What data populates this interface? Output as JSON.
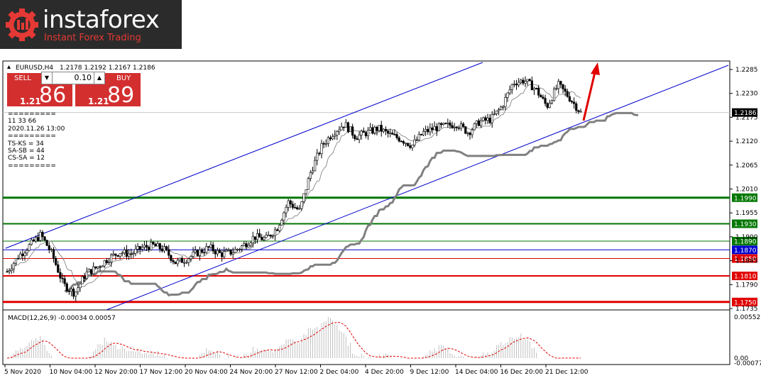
{
  "logo": {
    "brand": "instaforex",
    "tagline": "Instant Forex Trading"
  },
  "header": {
    "symbol": "EURUSD,H4",
    "ohlc": "1.2178 1.2192 1.2167 1.2186"
  },
  "trade_panel": {
    "sell_label": "SELL",
    "buy_label": "BUY",
    "lot": "0.10",
    "sell_small": "1.21",
    "sell_big": "86",
    "buy_small": "1.21",
    "buy_big": "89"
  },
  "info_lines": [
    "=========",
    "11 33 66",
    "2020.11.26 13:00",
    "=========",
    "TS-KS = 34",
    "SA-SB = 44",
    "CS-SA = 12",
    "========="
  ],
  "macd_label": "MACD(12,26,9) -0.00034 0.00057",
  "colors": {
    "up": "#000000",
    "down": "#000000",
    "channel": "#0000cc",
    "support": "#007700",
    "resistance": "#e00000",
    "kijun": "#808080",
    "arrow": "#e00000"
  },
  "chart_data": {
    "type": "candlestick",
    "price_axis_ticks": [
      "1.2285",
      "1.2230",
      "1.2175",
      "1.2120",
      "1.2065",
      "1.2010",
      "1.1955",
      "1.1900",
      "1.1845",
      "1.1790",
      "1.1735"
    ],
    "ylim": [
      1.1725,
      1.23
    ],
    "current_price": "1.2186",
    "levels": [
      {
        "label": "1.1990",
        "value": 1.199,
        "color": "#007700",
        "width": 3
      },
      {
        "label": "1.1930",
        "value": 1.193,
        "color": "#007700",
        "width": 2
      },
      {
        "label": "1.1890",
        "value": 1.189,
        "color": "#007700",
        "width": 1
      },
      {
        "label": "1.1870",
        "value": 1.187,
        "color": "#0000cc",
        "width": 1
      },
      {
        "label": "1.1850",
        "value": 1.185,
        "color": "#e00000",
        "width": 1
      },
      {
        "label": "1.1810",
        "value": 1.181,
        "color": "#e00000",
        "width": 2
      },
      {
        "label": "1.1750",
        "value": 1.175,
        "color": "#e00000",
        "width": 3
      }
    ],
    "x_ticks": [
      "5 Nov 2020",
      "10 Nov 04:00",
      "12 Nov 20:00",
      "17 Nov 12:00",
      "20 Nov 04:00",
      "24 Nov 20:00",
      "27 Nov 12:00",
      "2 Dec 04:00",
      "4 Dec 20:00",
      "9 Dec 12:00",
      "14 Dec 04:00",
      "16 Dec 20:00",
      "21 Dec 12:00"
    ],
    "macd_ticks": [
      "0.00552",
      "0.00",
      "-0.00077"
    ],
    "price_path": [
      1.182,
      1.1855,
      1.188,
      1.1905,
      1.186,
      1.179,
      1.177,
      1.1815,
      1.183,
      1.185,
      1.1865,
      1.186,
      1.1875,
      1.188,
      1.187,
      1.184,
      1.185,
      1.1865,
      1.1875,
      1.186,
      1.1865,
      1.188,
      1.19,
      1.1895,
      1.192,
      1.198,
      1.196,
      1.205,
      1.211,
      1.214,
      1.216,
      1.213,
      1.214,
      1.215,
      1.2135,
      1.2125,
      1.211,
      1.214,
      1.215,
      1.2155,
      1.216,
      1.214,
      1.2165,
      1.217,
      1.22,
      1.2255,
      1.226,
      1.224,
      1.22,
      1.225,
      1.222,
      1.2186
    ]
  }
}
